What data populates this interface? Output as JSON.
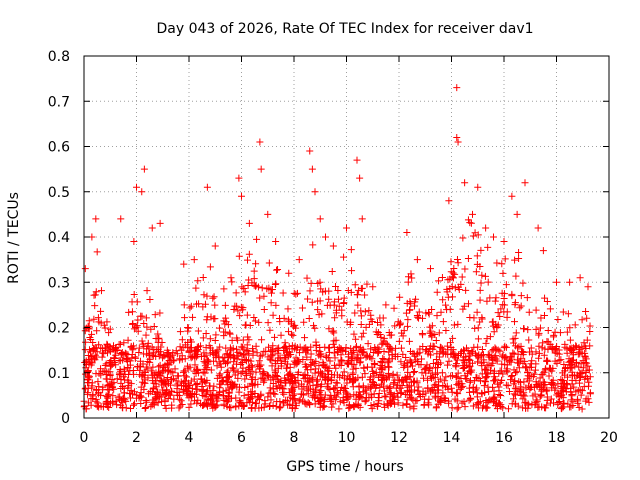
{
  "chart_data": {
    "type": "scatter",
    "title": "Day 043 of 2026, Rate Of TEC Index for receiver dav1",
    "xlabel": "GPS time / hours",
    "ylabel": "ROTI / TECUs",
    "xlim": [
      0,
      20
    ],
    "ylim": [
      0,
      0.8
    ],
    "x_ticks": [
      0,
      2,
      4,
      6,
      8,
      10,
      12,
      14,
      16,
      18,
      20
    ],
    "x_tick_labels": [
      "0",
      "2",
      "4",
      "6",
      "8",
      "10",
      "12",
      "14",
      "16",
      "18",
      "20"
    ],
    "y_ticks": [
      0,
      0.1,
      0.2,
      0.3,
      0.4,
      0.5,
      0.6,
      0.7,
      0.8
    ],
    "y_tick_labels": [
      "0",
      "0.1",
      "0.2",
      "0.3",
      "0.4",
      "0.5",
      "0.6",
      "0.7",
      "0.8"
    ],
    "grid": true,
    "marker": "+",
    "color": "#ff0000",
    "series": [
      {
        "name": "ROTI",
        "data_coverage_hours": [
          0,
          19.3
        ],
        "baseline_range": [
          0.02,
          0.16
        ],
        "notable_points": [
          {
            "x": 0.05,
            "y": 0.33
          },
          {
            "x": 0.3,
            "y": 0.4
          },
          {
            "x": 0.45,
            "y": 0.44
          },
          {
            "x": 1.4,
            "y": 0.44
          },
          {
            "x": 1.9,
            "y": 0.39
          },
          {
            "x": 2.0,
            "y": 0.51
          },
          {
            "x": 2.2,
            "y": 0.5
          },
          {
            "x": 2.3,
            "y": 0.55
          },
          {
            "x": 2.6,
            "y": 0.42
          },
          {
            "x": 2.9,
            "y": 0.43
          },
          {
            "x": 3.8,
            "y": 0.34
          },
          {
            "x": 4.2,
            "y": 0.35
          },
          {
            "x": 4.7,
            "y": 0.51
          },
          {
            "x": 5.0,
            "y": 0.38
          },
          {
            "x": 5.6,
            "y": 0.31
          },
          {
            "x": 5.9,
            "y": 0.53
          },
          {
            "x": 6.0,
            "y": 0.49
          },
          {
            "x": 6.3,
            "y": 0.43
          },
          {
            "x": 6.7,
            "y": 0.61
          },
          {
            "x": 6.75,
            "y": 0.55
          },
          {
            "x": 7.0,
            "y": 0.45
          },
          {
            "x": 7.3,
            "y": 0.39
          },
          {
            "x": 7.8,
            "y": 0.32
          },
          {
            "x": 8.2,
            "y": 0.35
          },
          {
            "x": 8.6,
            "y": 0.59
          },
          {
            "x": 8.7,
            "y": 0.55
          },
          {
            "x": 8.8,
            "y": 0.5
          },
          {
            "x": 9.0,
            "y": 0.44
          },
          {
            "x": 9.2,
            "y": 0.4
          },
          {
            "x": 9.5,
            "y": 0.38
          },
          {
            "x": 10.0,
            "y": 0.42
          },
          {
            "x": 10.4,
            "y": 0.57
          },
          {
            "x": 10.5,
            "y": 0.53
          },
          {
            "x": 10.6,
            "y": 0.44
          },
          {
            "x": 11.0,
            "y": 0.29
          },
          {
            "x": 11.5,
            "y": 0.25
          },
          {
            "x": 12.3,
            "y": 0.41
          },
          {
            "x": 12.7,
            "y": 0.35
          },
          {
            "x": 13.2,
            "y": 0.33
          },
          {
            "x": 13.9,
            "y": 0.48
          },
          {
            "x": 14.2,
            "y": 0.73
          },
          {
            "x": 14.2,
            "y": 0.62
          },
          {
            "x": 14.25,
            "y": 0.61
          },
          {
            "x": 14.5,
            "y": 0.52
          },
          {
            "x": 14.8,
            "y": 0.45
          },
          {
            "x": 15.0,
            "y": 0.51
          },
          {
            "x": 15.3,
            "y": 0.42
          },
          {
            "x": 15.6,
            "y": 0.4
          },
          {
            "x": 16.0,
            "y": 0.39
          },
          {
            "x": 16.3,
            "y": 0.49
          },
          {
            "x": 16.5,
            "y": 0.45
          },
          {
            "x": 16.8,
            "y": 0.52
          },
          {
            "x": 17.3,
            "y": 0.42
          },
          {
            "x": 17.5,
            "y": 0.37
          },
          {
            "x": 18.0,
            "y": 0.3
          },
          {
            "x": 18.5,
            "y": 0.3
          },
          {
            "x": 18.9,
            "y": 0.31
          },
          {
            "x": 19.2,
            "y": 0.29
          }
        ],
        "activity_profile": [
          [
            0.0,
            0.18
          ],
          [
            0.5,
            0.3
          ],
          [
            1.0,
            0.16
          ],
          [
            1.5,
            0.15
          ],
          [
            2.0,
            0.25
          ],
          [
            2.5,
            0.22
          ],
          [
            3.0,
            0.18
          ],
          [
            3.5,
            0.17
          ],
          [
            4.0,
            0.24
          ],
          [
            4.5,
            0.28
          ],
          [
            5.0,
            0.27
          ],
          [
            5.5,
            0.22
          ],
          [
            6.0,
            0.3
          ],
          [
            6.5,
            0.33
          ],
          [
            7.0,
            0.3
          ],
          [
            7.5,
            0.25
          ],
          [
            8.0,
            0.22
          ],
          [
            8.5,
            0.32
          ],
          [
            9.0,
            0.3
          ],
          [
            9.5,
            0.27
          ],
          [
            10.0,
            0.3
          ],
          [
            10.5,
            0.3
          ],
          [
            11.0,
            0.23
          ],
          [
            11.5,
            0.18
          ],
          [
            12.0,
            0.22
          ],
          [
            12.5,
            0.28
          ],
          [
            13.0,
            0.24
          ],
          [
            13.5,
            0.25
          ],
          [
            14.0,
            0.33
          ],
          [
            14.5,
            0.36
          ],
          [
            15.0,
            0.34
          ],
          [
            15.5,
            0.3
          ],
          [
            16.0,
            0.28
          ],
          [
            16.5,
            0.3
          ],
          [
            17.0,
            0.25
          ],
          [
            17.5,
            0.22
          ],
          [
            18.0,
            0.19
          ],
          [
            18.5,
            0.2
          ],
          [
            19.0,
            0.22
          ],
          [
            19.3,
            0.2
          ]
        ]
      }
    ]
  }
}
